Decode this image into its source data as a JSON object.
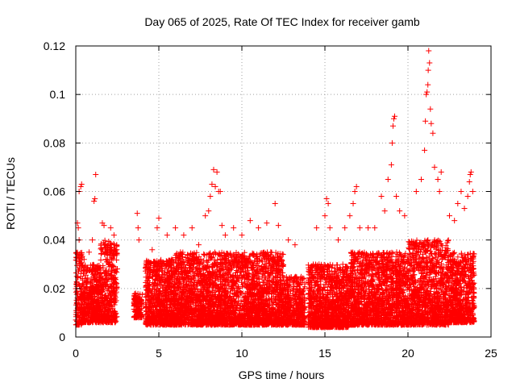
{
  "chart_data": {
    "type": "scatter",
    "title": "Day 065 of 2025, Rate Of TEC Index for receiver gamb",
    "xlabel": "GPS time / hours",
    "ylabel": "ROTI / TECUs",
    "xlim": [
      0,
      25
    ],
    "ylim": [
      0,
      0.12
    ],
    "xticks": [
      0,
      5,
      10,
      15,
      20,
      25
    ],
    "xtick_labels": [
      "0",
      "5",
      "10",
      "15",
      "20",
      "25"
    ],
    "yticks": [
      0,
      0.02,
      0.04,
      0.06,
      0.08,
      0.1,
      0.12
    ],
    "ytick_labels": [
      "0",
      "0.02",
      "0.04",
      "0.06",
      "0.08",
      "0.1",
      "0.12"
    ],
    "grid": true,
    "marker": "+",
    "marker_color": "#ff0000",
    "series": [
      {
        "name": "ROTI",
        "bulk_segments": [
          {
            "x_range": [
              0.0,
              0.4
            ],
            "y_range": [
              0.005,
              0.035
            ],
            "density": 0.9
          },
          {
            "x_range": [
              0.4,
              1.5
            ],
            "y_range": [
              0.006,
              0.03
            ],
            "density": 0.9
          },
          {
            "x_range": [
              1.5,
              2.5
            ],
            "y_range": [
              0.006,
              0.04
            ],
            "density": 0.9
          },
          {
            "x_range": [
              3.5,
              4.0
            ],
            "y_range": [
              0.008,
              0.018
            ],
            "density": 0.6
          },
          {
            "x_range": [
              4.2,
              6.0
            ],
            "y_range": [
              0.005,
              0.032
            ],
            "density": 1.0
          },
          {
            "x_range": [
              6.0,
              12.5
            ],
            "y_range": [
              0.005,
              0.035
            ],
            "density": 1.0
          },
          {
            "x_range": [
              12.5,
              13.8
            ],
            "y_range": [
              0.005,
              0.025
            ],
            "density": 0.8
          },
          {
            "x_range": [
              14.0,
              16.5
            ],
            "y_range": [
              0.004,
              0.03
            ],
            "density": 1.0
          },
          {
            "x_range": [
              16.5,
              20.0
            ],
            "y_range": [
              0.005,
              0.035
            ],
            "density": 1.0
          },
          {
            "x_range": [
              20.0,
              22.5
            ],
            "y_range": [
              0.005,
              0.04
            ],
            "density": 1.0
          },
          {
            "x_range": [
              22.5,
              24.0
            ],
            "y_range": [
              0.006,
              0.035
            ],
            "density": 1.0
          }
        ],
        "outliers": [
          [
            0.1,
            0.047
          ],
          [
            0.15,
            0.045
          ],
          [
            0.2,
            0.04
          ],
          [
            0.2,
            0.06
          ],
          [
            0.3,
            0.062
          ],
          [
            0.35,
            0.063
          ],
          [
            0.5,
            0.032
          ],
          [
            0.8,
            0.035
          ],
          [
            1.0,
            0.04
          ],
          [
            1.1,
            0.056
          ],
          [
            1.15,
            0.057
          ],
          [
            1.2,
            0.067
          ],
          [
            1.6,
            0.047
          ],
          [
            1.7,
            0.046
          ],
          [
            1.9,
            0.035
          ],
          [
            2.1,
            0.045
          ],
          [
            2.3,
            0.042
          ],
          [
            3.7,
            0.051
          ],
          [
            3.75,
            0.045
          ],
          [
            3.8,
            0.04
          ],
          [
            4.3,
            0.03
          ],
          [
            4.6,
            0.036
          ],
          [
            4.9,
            0.045
          ],
          [
            5.0,
            0.049
          ],
          [
            5.5,
            0.042
          ],
          [
            6.0,
            0.045
          ],
          [
            6.5,
            0.042
          ],
          [
            7.0,
            0.045
          ],
          [
            7.4,
            0.038
          ],
          [
            7.8,
            0.05
          ],
          [
            8.0,
            0.052
          ],
          [
            8.1,
            0.058
          ],
          [
            8.2,
            0.063
          ],
          [
            8.3,
            0.069
          ],
          [
            8.4,
            0.062
          ],
          [
            8.5,
            0.068
          ],
          [
            8.6,
            0.06
          ],
          [
            8.7,
            0.06
          ],
          [
            8.8,
            0.046
          ],
          [
            9.0,
            0.042
          ],
          [
            9.5,
            0.045
          ],
          [
            10.0,
            0.042
          ],
          [
            10.5,
            0.048
          ],
          [
            11.0,
            0.045
          ],
          [
            11.5,
            0.047
          ],
          [
            12.0,
            0.055
          ],
          [
            12.2,
            0.046
          ],
          [
            12.8,
            0.04
          ],
          [
            13.2,
            0.038
          ],
          [
            14.5,
            0.045
          ],
          [
            15.0,
            0.05
          ],
          [
            15.1,
            0.057
          ],
          [
            15.2,
            0.055
          ],
          [
            15.3,
            0.045
          ],
          [
            15.8,
            0.04
          ],
          [
            16.2,
            0.045
          ],
          [
            16.5,
            0.05
          ],
          [
            16.7,
            0.055
          ],
          [
            16.8,
            0.06
          ],
          [
            16.9,
            0.062
          ],
          [
            17.1,
            0.045
          ],
          [
            17.6,
            0.045
          ],
          [
            18.0,
            0.045
          ],
          [
            18.4,
            0.058
          ],
          [
            18.6,
            0.052
          ],
          [
            18.8,
            0.065
          ],
          [
            19.0,
            0.071
          ],
          [
            19.05,
            0.08
          ],
          [
            19.1,
            0.087
          ],
          [
            19.15,
            0.09
          ],
          [
            19.2,
            0.091
          ],
          [
            19.3,
            0.058
          ],
          [
            19.5,
            0.052
          ],
          [
            19.8,
            0.05
          ],
          [
            20.5,
            0.06
          ],
          [
            20.8,
            0.065
          ],
          [
            21.0,
            0.077
          ],
          [
            21.05,
            0.089
          ],
          [
            21.1,
            0.1
          ],
          [
            21.15,
            0.101
          ],
          [
            21.2,
            0.104
          ],
          [
            21.22,
            0.11
          ],
          [
            21.25,
            0.118
          ],
          [
            21.3,
            0.113
          ],
          [
            21.35,
            0.094
          ],
          [
            21.4,
            0.088
          ],
          [
            21.5,
            0.084
          ],
          [
            21.6,
            0.07
          ],
          [
            21.8,
            0.065
          ],
          [
            21.9,
            0.06
          ],
          [
            22.0,
            0.068
          ],
          [
            22.5,
            0.05
          ],
          [
            22.8,
            0.048
          ],
          [
            23.0,
            0.055
          ],
          [
            23.2,
            0.06
          ],
          [
            23.4,
            0.053
          ],
          [
            23.6,
            0.058
          ],
          [
            23.7,
            0.064
          ],
          [
            23.75,
            0.067
          ],
          [
            23.8,
            0.068
          ],
          [
            23.9,
            0.06
          ]
        ]
      }
    ]
  }
}
